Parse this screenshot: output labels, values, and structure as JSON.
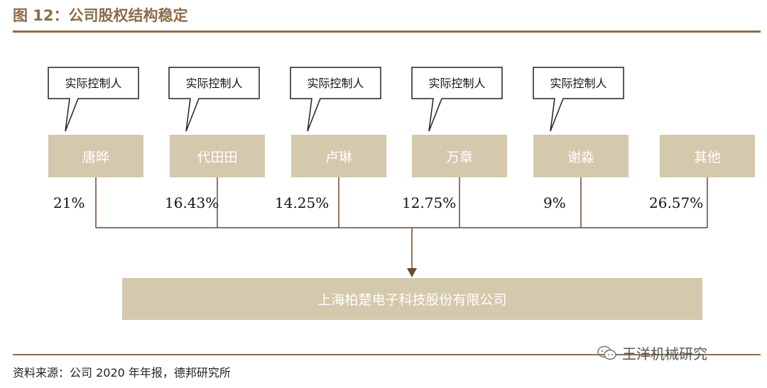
{
  "header": {
    "title": "图 12：公司股权结构稳定"
  },
  "callout_label": "实际控制人",
  "shareholders": [
    {
      "name": "唐晔",
      "pct": "21%",
      "controller": true
    },
    {
      "name": "代田田",
      "pct": "16.43%",
      "controller": true
    },
    {
      "name": "卢琳",
      "pct": "14.25%",
      "controller": true
    },
    {
      "name": "万章",
      "pct": "12.75%",
      "controller": true
    },
    {
      "name": "谢淼",
      "pct": "9%",
      "controller": true
    },
    {
      "name": "其他",
      "pct": "26.57%",
      "controller": false
    }
  ],
  "company": "上海柏楚电子科技股份有限公司",
  "footer": {
    "source": "资料来源：公司 2020 年年报，德邦研究所"
  },
  "watermark": {
    "text": "王洋机械研究",
    "icon": "wechat-icon"
  },
  "colors": {
    "accent": "#8B6B4A",
    "box": "#D4C8AD",
    "arrow": "#6B4A2E"
  }
}
